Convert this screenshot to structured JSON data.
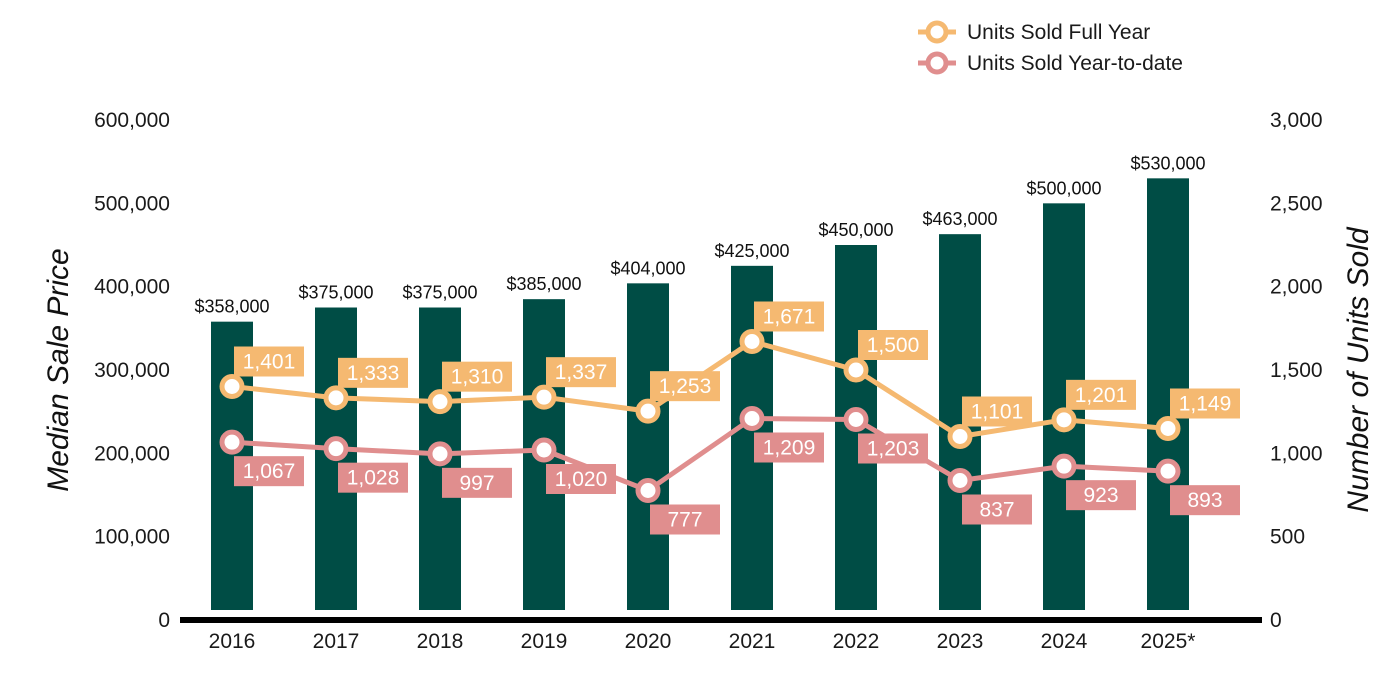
{
  "chart_data": {
    "type": "bar+line",
    "categories": [
      "2016",
      "2017",
      "2018",
      "2019",
      "2020",
      "2021",
      "2022",
      "2023",
      "2024",
      "2025*"
    ],
    "bars": {
      "values": [
        358000,
        375000,
        375000,
        385000,
        404000,
        425000,
        450000,
        463000,
        500000,
        530000
      ],
      "labels": [
        "$358,000",
        "$375,000",
        "$375,000",
        "$385,000",
        "$404,000",
        "$425,000",
        "$450,000",
        "$463,000",
        "$500,000",
        "$530,000"
      ],
      "color": "#004D45",
      "axis": "left"
    },
    "series": [
      {
        "name": "Units Sold Full Year",
        "values": [
          1401,
          1333,
          1310,
          1337,
          1253,
          1671,
          1500,
          1101,
          1201,
          1149
        ],
        "labels": [
          "1,401",
          "1,333",
          "1,310",
          "1,337",
          "1,253",
          "1,671",
          "1,500",
          "1,101",
          "1,201",
          "1,149"
        ],
        "color": "#F5B971",
        "axis": "right",
        "label_position": "above-right"
      },
      {
        "name": "Units Sold Year-to-date",
        "values": [
          1067,
          1028,
          997,
          1020,
          777,
          1209,
          1203,
          837,
          923,
          893
        ],
        "labels": [
          "1,067",
          "1,028",
          "997",
          "1,020",
          "777",
          "1,209",
          "1,203",
          "837",
          "923",
          "893"
        ],
        "color": "#E08E8E",
        "axis": "right",
        "label_position": "below-right"
      }
    ],
    "left_axis": {
      "title": "Median Sale Price",
      "range": [
        0,
        600000
      ],
      "ticks": [
        0,
        100000,
        200000,
        300000,
        400000,
        500000,
        600000
      ],
      "tick_labels": [
        "0",
        "100,000",
        "200,000",
        "300,000",
        "400,000",
        "500,000",
        "600,000"
      ]
    },
    "right_axis": {
      "title": "Number of Units Sold",
      "range": [
        0,
        3000
      ],
      "ticks": [
        0,
        500,
        1000,
        1500,
        2000,
        2500,
        3000
      ],
      "tick_labels": [
        "0",
        "500",
        "1,000",
        "1,500",
        "2,000",
        "2,500",
        "3,000"
      ]
    },
    "grid": false,
    "legend_position": "top-right"
  }
}
